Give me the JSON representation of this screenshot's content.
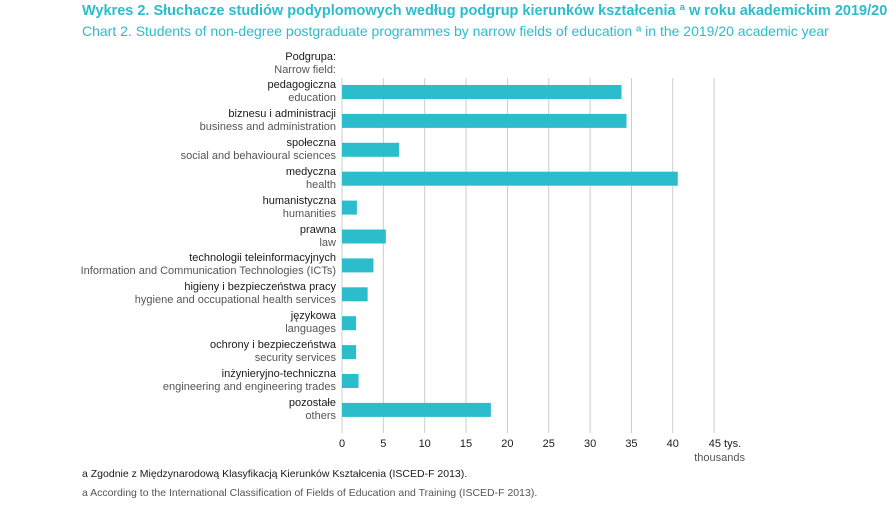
{
  "title_pl": "Wykres 2. Słuchacze studiów podyplomowych według podgrup kierunków kształcenia ª w roku akademickim 2019/20",
  "title_en": "Chart 2. Students of non-degree postgraduate programmes by narrow fields of education ª in the 2019/20 academic year",
  "footnotes": {
    "pl": "a Zgodnie z Międzynarodową Klasyfikacją Kierunków Kształcenia (ISCED-F 2013).",
    "en": "a According to the International Classification of Fields of Education and Training (ISCED-F 2013)."
  },
  "colors": {
    "bar": "#2bbdcc",
    "grid": "#cccccc",
    "title": "#2bbdcc"
  },
  "chart_data": {
    "type": "bar",
    "orientation": "horizontal",
    "category_header_pl": "Podgrupa:",
    "category_header_en": "Narrow field:",
    "categories": [
      {
        "pl": "pedagogiczna",
        "en": "education"
      },
      {
        "pl": "biznesu i administracji",
        "en": "business and administration"
      },
      {
        "pl": "społeczna",
        "en": "social and behavioural sciences"
      },
      {
        "pl": "medyczna",
        "en": "health"
      },
      {
        "pl": "humanistyczna",
        "en": "humanities"
      },
      {
        "pl": "prawna",
        "en": "law"
      },
      {
        "pl": "technologii teleinformacyjnych",
        "en": "Information and Communication Technologies (ICTs)"
      },
      {
        "pl": "higieny i bezpieczeństwa pracy",
        "en": "hygiene and occupational health services"
      },
      {
        "pl": "językowa",
        "en": "languages"
      },
      {
        "pl": "ochrony i bezpieczeństwa",
        "en": "security services"
      },
      {
        "pl": "inżynieryjno-techniczna",
        "en": "engineering and engineering trades"
      },
      {
        "pl": "pozostałe",
        "en": "others"
      }
    ],
    "values": [
      33.8,
      34.4,
      6.9,
      40.6,
      1.8,
      5.3,
      3.8,
      3.1,
      1.7,
      1.7,
      2.0,
      18.0
    ],
    "xlim": [
      0,
      45
    ],
    "xticks": [
      "0",
      "5",
      "10",
      "15",
      "20",
      "25",
      "30",
      "35",
      "40",
      "45 tys."
    ],
    "xlabel": "thousands",
    "grid": true
  }
}
